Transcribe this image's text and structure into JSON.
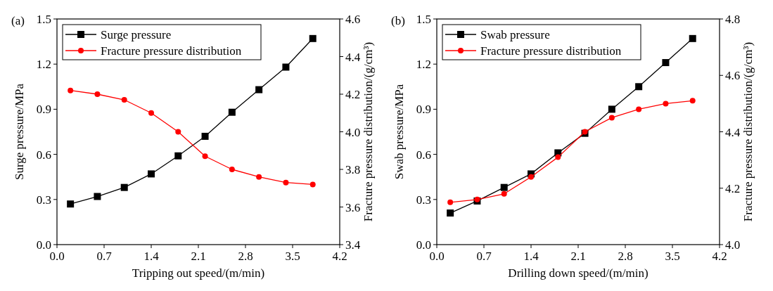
{
  "chart_data": [
    {
      "type": "line",
      "annotations": [
        "(a)"
      ],
      "xlabel": "Tripping out speed/(m/min)",
      "ylabel": "Surge pressure/MPa",
      "y2label": "Fracture pressure distribution/(g/cm³)",
      "x": [
        0.2,
        0.6,
        1.0,
        1.4,
        1.8,
        2.2,
        2.6,
        3.0,
        3.4,
        3.8
      ],
      "series": [
        {
          "name": "Surge pressure",
          "color": "#000000",
          "marker": "square",
          "values": [
            0.27,
            0.32,
            0.38,
            0.47,
            0.59,
            0.72,
            0.88,
            1.03,
            1.18,
            1.37
          ]
        },
        {
          "name": "Fracture pressure distribution",
          "color": "#ff0000",
          "marker": "circle",
          "axis": "y2",
          "values": [
            4.22,
            4.2,
            4.17,
            4.1,
            4.0,
            3.87,
            3.8,
            3.76,
            3.73,
            3.72
          ]
        }
      ],
      "xlim": [
        0,
        4.2
      ],
      "xticks": [
        {
          "value": 0,
          "label": "0.0"
        },
        0.7,
        1.4,
        2.1,
        2.8,
        3.5,
        4.2
      ],
      "ylim": [
        0,
        1.5
      ],
      "yticks": [
        {
          "value": 0,
          "label": "0.0"
        },
        0.3,
        0.6,
        0.9,
        1.2,
        1.5
      ],
      "y2lim": [
        3.4,
        4.6
      ],
      "y2ticks": [
        3.4,
        3.6,
        3.8,
        {
          "value": 4,
          "label": "4.0"
        },
        4.2,
        4.4,
        4.6
      ],
      "legend": "top left",
      "grid": false
    },
    {
      "type": "line",
      "annotations": [
        "(b)"
      ],
      "xlabel": "Drilling down speed/(m/min)",
      "ylabel": "Swab pressure/MPa",
      "y2label": "Fracture pressure distribution/(g/cm³)",
      "x": [
        0.2,
        0.6,
        1.0,
        1.4,
        1.8,
        2.2,
        2.6,
        3.0,
        3.4,
        3.8
      ],
      "series": [
        {
          "name": "Swab pressure",
          "color": "#000000",
          "marker": "square",
          "values": [
            0.21,
            0.29,
            0.38,
            0.47,
            0.61,
            0.74,
            0.9,
            1.05,
            1.21,
            1.37
          ]
        },
        {
          "name": "Fracture pressure distribution",
          "color": "#ff0000",
          "marker": "circle",
          "axis": "y2",
          "values": [
            4.15,
            4.16,
            4.18,
            4.24,
            4.31,
            4.4,
            4.45,
            4.48,
            4.5,
            4.51
          ]
        }
      ],
      "xlim": [
        0,
        4.2
      ],
      "xticks": [
        {
          "value": 0,
          "label": "0.0"
        },
        0.7,
        1.4,
        2.1,
        2.8,
        3.5,
        4.2
      ],
      "ylim": [
        0,
        1.5
      ],
      "yticks": [
        {
          "value": 0,
          "label": "0.0"
        },
        0.3,
        0.6,
        0.9,
        1.2,
        1.5
      ],
      "y2lim": [
        4.0,
        4.8
      ],
      "y2ticks": [
        {
          "value": 4,
          "label": "4.0"
        },
        4.2,
        4.4,
        4.6,
        4.8
      ],
      "legend": "top left",
      "grid": false
    }
  ]
}
